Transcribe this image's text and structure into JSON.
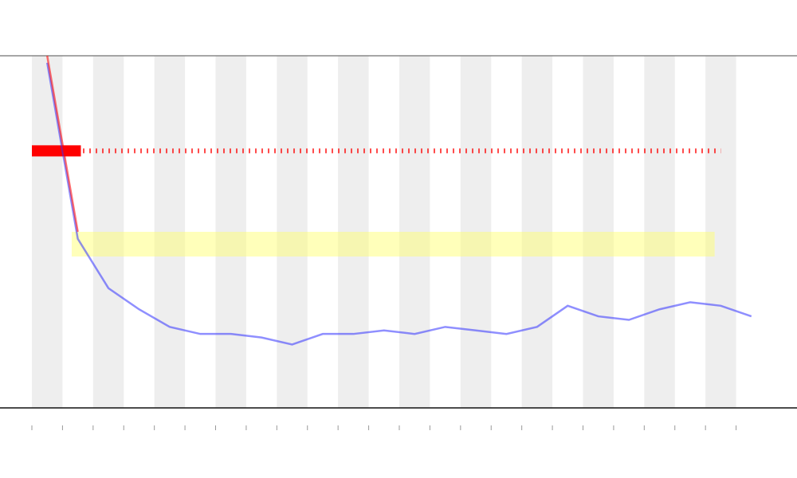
{
  "chart_data": {
    "type": "line",
    "categories": [
      null,
      null,
      null,
      null,
      null,
      null,
      null,
      null,
      null,
      null,
      null,
      null,
      null,
      null,
      null,
      null,
      null,
      null,
      null,
      null,
      null,
      null,
      null,
      null
    ],
    "shade_alternate": true,
    "ylim": [
      0,
      100
    ],
    "series": [
      {
        "color": "#3333ff",
        "values": [
          98,
          48,
          34,
          28,
          23,
          21,
          21,
          20,
          18,
          21,
          21,
          22,
          21,
          23,
          22,
          21,
          23,
          29,
          26,
          25,
          28,
          30,
          29,
          26
        ]
      },
      {
        "color": "#ff0000",
        "values": [
          100,
          50,
          null,
          null,
          null,
          null,
          null,
          null,
          null,
          null,
          null,
          null,
          null,
          null,
          null,
          null,
          null,
          null,
          null,
          null,
          null,
          null,
          null,
          null
        ]
      }
    ],
    "hlines": [
      {
        "value": 73,
        "color": "#ff0000"
      }
    ],
    "span": {
      "range": [
        43,
        50
      ],
      "color": "#ffff66"
    }
  }
}
